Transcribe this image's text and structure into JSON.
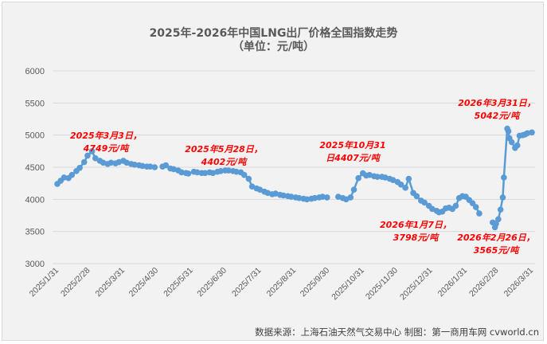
{
  "title": "2025年-2026年中国LNG出厂价格全国指数走势",
  "subtitle": "（单位：元/吨）",
  "source": "数据来源：上海石油天然气交易中心 制图：第一商用车网 cvworld.cn",
  "colors": {
    "series": "#5b9bd5",
    "annotation": "#ff0000",
    "grid": "#d9d9d9",
    "background": "#f2f2f2"
  },
  "chart_data": {
    "type": "line",
    "title": "2025年-2026年中国LNG出厂价格全国指数走势",
    "subtitle": "（单位：元/吨）",
    "xlabel": "",
    "ylabel": "元/吨",
    "ylim": [
      3000,
      6000
    ],
    "yticks": [
      3000,
      3500,
      4000,
      4500,
      5000,
      5500,
      6000
    ],
    "grid": true,
    "legend": "none",
    "xtick_labels": [
      "2025/1/31",
      "2025/2/28",
      "2025/3/31",
      "2025/4/30",
      "2025/5/31",
      "2025/6/30",
      "2025/7/31",
      "2025/8/31",
      "2025/9/30",
      "2025/10/31",
      "2025/11/30",
      "2025/12/31",
      "2026/1/31",
      "2026/2/28",
      "2026/3/31"
    ],
    "series": [
      {
        "name": "中国LNG出厂价格全国指数",
        "segments": [
          {
            "x": [
              "2025/1/31",
              "2025/2/3",
              "2025/2/6",
              "2025/2/10",
              "2025/2/13",
              "2025/2/17",
              "2025/2/20",
              "2025/2/24",
              "2025/2/27",
              "2025/3/3",
              "2025/3/6",
              "2025/3/10",
              "2025/3/13",
              "2025/3/17",
              "2025/3/20",
              "2025/3/24",
              "2025/3/27",
              "2025/3/31",
              "2025/4/3",
              "2025/4/7",
              "2025/4/10",
              "2025/4/14",
              "2025/4/17",
              "2025/4/21",
              "2025/4/24",
              "2025/4/28"
            ],
            "values": [
              4240,
              4290,
              4340,
              4330,
              4380,
              4440,
              4490,
              4580,
              4680,
              4749,
              4640,
              4600,
              4570,
              4550,
              4570,
              4560,
              4580,
              4600,
              4570,
              4550,
              4540,
              4530,
              4520,
              4510,
              4510,
              4500
            ]
          },
          {
            "x": [
              "2025/5/5",
              "2025/5/8",
              "2025/5/12",
              "2025/5/15",
              "2025/5/19",
              "2025/5/22",
              "2025/5/26",
              "2025/5/28",
              "2025/6/2",
              "2025/6/5",
              "2025/6/9",
              "2025/6/12",
              "2025/6/16",
              "2025/6/19",
              "2025/6/23",
              "2025/6/26",
              "2025/6/30",
              "2025/7/3",
              "2025/7/7",
              "2025/7/10",
              "2025/7/14",
              "2025/7/17",
              "2025/7/21",
              "2025/7/24",
              "2025/7/28",
              "2025/7/31",
              "2025/8/4",
              "2025/8/7",
              "2025/8/11",
              "2025/8/14",
              "2025/8/18",
              "2025/8/21",
              "2025/8/25",
              "2025/8/28",
              "2025/9/1",
              "2025/9/4",
              "2025/9/8",
              "2025/9/11",
              "2025/9/15",
              "2025/9/18",
              "2025/9/22",
              "2025/9/25",
              "2025/9/29"
            ],
            "values": [
              4510,
              4530,
              4480,
              4470,
              4450,
              4420,
              4410,
              4402,
              4430,
              4420,
              4410,
              4410,
              4420,
              4410,
              4430,
              4440,
              4450,
              4450,
              4440,
              4430,
              4420,
              4380,
              4320,
              4200,
              4170,
              4150,
              4120,
              4100,
              4080,
              4090,
              4070,
              4060,
              4050,
              4040,
              4030,
              4020,
              4010,
              4000,
              4010,
              4020,
              4030,
              4040,
              4030
            ]
          },
          {
            "x": [
              "2025/10/9",
              "2025/10/13",
              "2025/10/16",
              "2025/10/20",
              "2025/10/23",
              "2025/10/27",
              "2025/10/31",
              "2025/11/3",
              "2025/11/6",
              "2025/11/10",
              "2025/11/13",
              "2025/11/17",
              "2025/11/20",
              "2025/11/24",
              "2025/11/27",
              "2025/12/1",
              "2025/12/4",
              "2025/12/8",
              "2025/12/11",
              "2025/12/15",
              "2025/12/18",
              "2025/12/22",
              "2025/12/25",
              "2025/12/29",
              "2026/1/1",
              "2026/1/5",
              "2026/1/7",
              "2026/1/10",
              "2026/1/13",
              "2026/1/16",
              "2026/1/19",
              "2026/1/22",
              "2026/1/25",
              "2026/1/28",
              "2026/1/31",
              "2026/2/3",
              "2026/2/6",
              "2026/2/9",
              "2026/2/12"
            ],
            "values": [
              4040,
              4020,
              4000,
              4030,
              4150,
              4330,
              4407,
              4370,
              4380,
              4360,
              4350,
              4350,
              4340,
              4320,
              4300,
              4270,
              4230,
              4180,
              4320,
              4100,
              4050,
              3980,
              3950,
              3900,
              3850,
              3820,
              3798,
              3810,
              3860,
              3870,
              3850,
              3900,
              4020,
              4050,
              4040,
              3990,
              3940,
              3880,
              3780
            ]
          },
          {
            "x": [
              "2026/2/24",
              "2026/2/26",
              "2026/2/27",
              "2026/3/1",
              "2026/3/3",
              "2026/3/5",
              "2026/3/6",
              "2026/3/9",
              "2026/3/10",
              "2026/3/11",
              "2026/3/13",
              "2026/3/16",
              "2026/3/18",
              "2026/3/20",
              "2026/3/23",
              "2026/3/25",
              "2026/3/27",
              "2026/3/31"
            ],
            "values": [
              3640,
              3565,
              3620,
              3690,
              3840,
              4030,
              4340,
              5100,
              5060,
              4950,
              4890,
              4800,
              4840,
              4990,
              5000,
              5010,
              5030,
              5042
            ]
          }
        ]
      }
    ],
    "annotations": [
      {
        "line1": "2025年3月3日，",
        "line2": "4749元/吨",
        "x": "2025/3/3",
        "value": 4749
      },
      {
        "line1": "2025年5月28日，",
        "line2": "4402元/吨",
        "x": "2025/5/28",
        "value": 4402
      },
      {
        "line1": "2025年10月31",
        "line2": "日4407元/吨",
        "x": "2025/10/31",
        "value": 4407
      },
      {
        "line1": "2026年1月7日，",
        "line2": "3798元/吨",
        "x": "2026/1/7",
        "value": 3798
      },
      {
        "line1": "2026年2月26日，",
        "line2": "3565元/吨",
        "x": "2026/2/26",
        "value": 3565
      },
      {
        "line1": "2026年3月31日，",
        "line2": "5042元/吨",
        "x": "2026/3/31",
        "value": 5042
      }
    ]
  }
}
